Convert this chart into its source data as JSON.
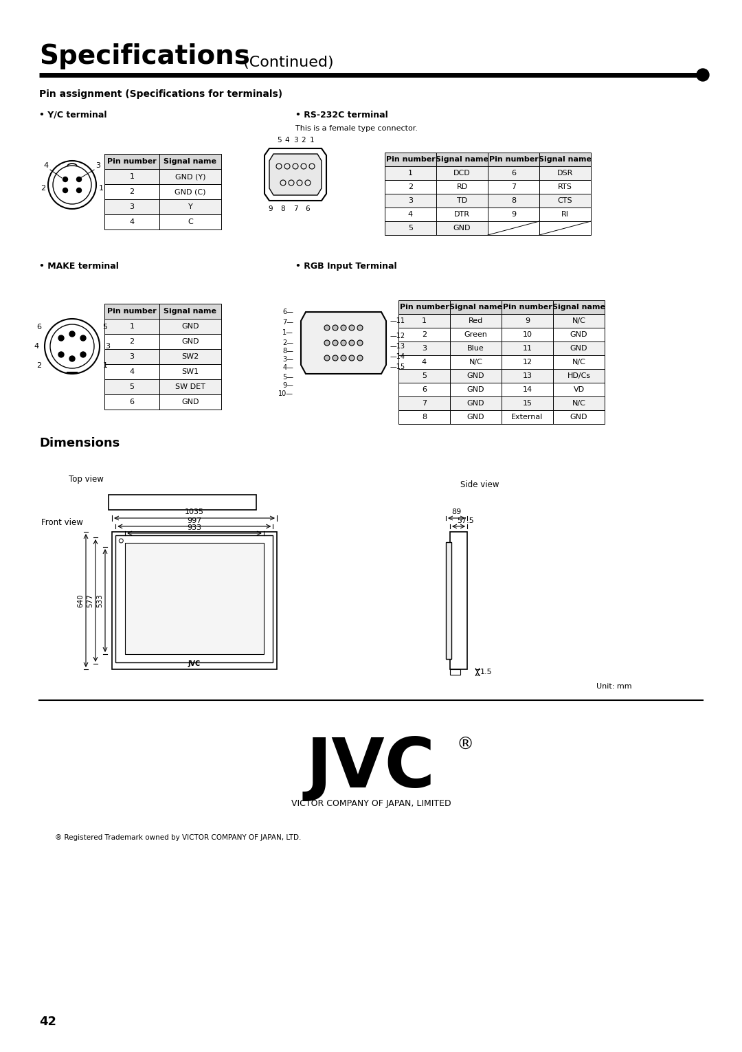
{
  "title_bold": "Specifications",
  "title_normal": " (Continued)",
  "section_title": "Pin assignment (Specifications for terminals)",
  "yc_label": "• Y/C terminal",
  "rs232_label": "• RS-232C terminal",
  "rs232_sub": "This is a female type connector.",
  "make_label": "• MAKE terminal",
  "rgb_label": "• RGB Input Terminal",
  "dimensions_label": "Dimensions",
  "yc_table": {
    "headers": [
      "Pin number",
      "Signal name"
    ],
    "rows": [
      [
        "1",
        "GND (Y)"
      ],
      [
        "2",
        "GND (C)"
      ],
      [
        "3",
        "Y"
      ],
      [
        "4",
        "C"
      ]
    ]
  },
  "rs232_table": {
    "headers": [
      "Pin number",
      "Signal name",
      "Pin number",
      "Signal name"
    ],
    "rows": [
      [
        "1",
        "DCD",
        "6",
        "DSR"
      ],
      [
        "2",
        "RD",
        "7",
        "RTS"
      ],
      [
        "3",
        "TD",
        "8",
        "CTS"
      ],
      [
        "4",
        "DTR",
        "9",
        "RI"
      ],
      [
        "5",
        "GND",
        "",
        ""
      ]
    ]
  },
  "make_table": {
    "headers": [
      "Pin number",
      "Signal name"
    ],
    "rows": [
      [
        "1",
        "GND"
      ],
      [
        "2",
        "GND"
      ],
      [
        "3",
        "SW2"
      ],
      [
        "4",
        "SW1"
      ],
      [
        "5",
        "SW DET"
      ],
      [
        "6",
        "GND"
      ]
    ]
  },
  "rgb_table": {
    "headers": [
      "Pin number",
      "Signal name",
      "Pin number",
      "Signal name"
    ],
    "rows": [
      [
        "1",
        "Red",
        "9",
        "N/C"
      ],
      [
        "2",
        "Green",
        "10",
        "GND"
      ],
      [
        "3",
        "Blue",
        "11",
        "GND"
      ],
      [
        "4",
        "N/C",
        "12",
        "N/C"
      ],
      [
        "5",
        "GND",
        "13",
        "HD/Cs"
      ],
      [
        "6",
        "GND",
        "14",
        "VD"
      ],
      [
        "7",
        "GND",
        "15",
        "N/C"
      ],
      [
        "8",
        "GND",
        "External",
        "GND"
      ]
    ]
  },
  "dim_top_label": "Top view",
  "dim_front_label": "Front view",
  "dim_side_label": "Side view",
  "dim_1035": "1035",
  "dim_997": "997",
  "dim_933": "933",
  "dim_640": "640",
  "dim_577": "577",
  "dim_533": "533",
  "dim_89": "89",
  "dim_57_5": "57.5",
  "dim_1_5": "1.5",
  "unit_label": "Unit: mm",
  "jvc_sub": "VICTOR COMPANY OF JAPAN, LIMITED",
  "registered": "® Registered Trademark owned by VICTOR COMPANY OF JAPAN, LTD.",
  "page_num": "42",
  "bg_color": "#ffffff",
  "text_color": "#000000",
  "table_header_bg": "#d0d0d0",
  "line_color": "#000000"
}
